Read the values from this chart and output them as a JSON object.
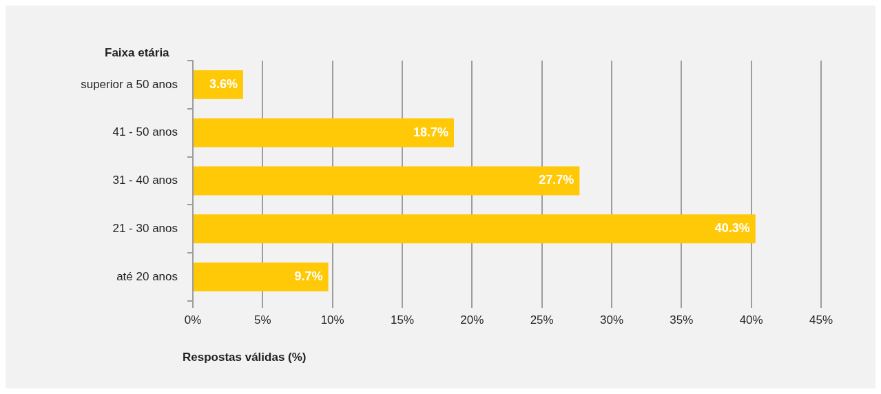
{
  "chart_data": {
    "type": "bar",
    "orientation": "horizontal",
    "ylabel": "Faixa etária",
    "xlabel": "Respostas válidas (%)",
    "categories": [
      "superior a 50 anos",
      "41 - 50 anos",
      "31 - 40 anos",
      "21 - 30 anos",
      "até 20 anos"
    ],
    "values": [
      3.6,
      18.7,
      27.7,
      40.3,
      9.7
    ],
    "color": "#ffc907",
    "value_labels": [
      "3.6%",
      "18.7%",
      "27.7%",
      "40.3%",
      "9.7%"
    ],
    "xlim": [
      0,
      45
    ],
    "xticks": [
      {
        "value": 0,
        "label": "0%"
      },
      {
        "value": 5,
        "label": "5%"
      },
      {
        "value": 10,
        "label": "10%"
      },
      {
        "value": 15,
        "label": "15%"
      },
      {
        "value": 20,
        "label": "20%"
      },
      {
        "value": 25,
        "label": "25%"
      },
      {
        "value": 30,
        "label": "30%"
      },
      {
        "value": 35,
        "label": "35%"
      },
      {
        "value": 40,
        "label": "40%"
      },
      {
        "value": 45,
        "label": "45%"
      }
    ],
    "grid": "x",
    "legend": false
  }
}
